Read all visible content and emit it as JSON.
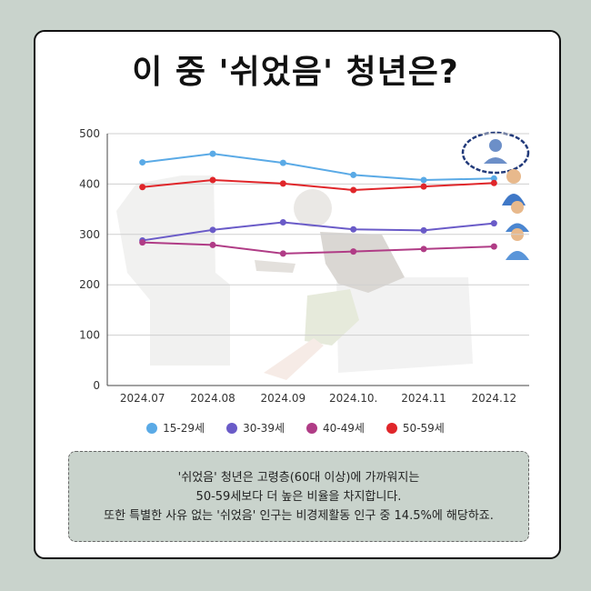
{
  "title": "이 중 '쉬었음' 청년은?",
  "note": {
    "line1": "'쉬었음' 청년은 고령층(60대 이상)에 가까워지는",
    "line2": "50-59세보다 더 높은 비율을 차지합니다.",
    "line3": "또한 특별한 사유 없는 '쉬었음' 인구는 비경제활동 인구 중 14.5%에 해당하죠."
  },
  "chart_data": {
    "type": "line",
    "categories": [
      "2024.07",
      "2024.08",
      "2024.09",
      "2024.10.",
      "2024.11",
      "2024.12"
    ],
    "ylim": [
      0,
      500
    ],
    "yticks": [
      "0",
      "100",
      "200",
      "300",
      "400",
      "500"
    ],
    "grid": true,
    "legend_position": "bottom",
    "series": [
      {
        "name": "15-29세",
        "color": "#5aaae6",
        "values": [
          443,
          460,
          442,
          418,
          408,
          411
        ]
      },
      {
        "name": "30-39세",
        "color": "#6a5bc8",
        "values": [
          288,
          309,
          324,
          310,
          308,
          322
        ]
      },
      {
        "name": "40-49세",
        "color": "#b03c86",
        "values": [
          284,
          279,
          262,
          266,
          271,
          276
        ]
      },
      {
        "name": "50-59세",
        "color": "#e0262a",
        "values": [
          394,
          408,
          401,
          388,
          395,
          402
        ]
      }
    ]
  }
}
